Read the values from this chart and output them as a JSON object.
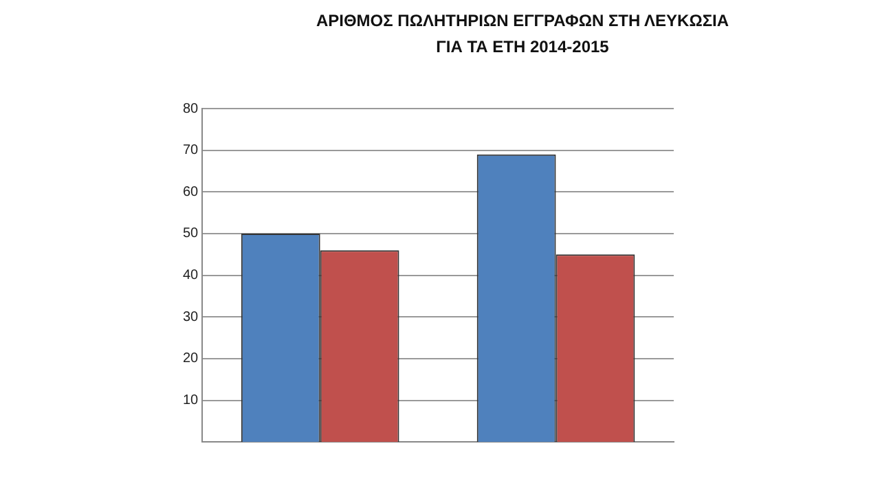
{
  "chart_data": {
    "type": "bar",
    "title": "ΑΡΙΘΜΟΣ ΠΩΛΗΤΗΡΙΩΝ ΕΓΓΡΑΦΩΝ ΣΤΗ ΛΕΥΚΩΣΙΑ ΓΙΑ ΤΑ ΕΤΗ 2014-2015",
    "categories": [
      null,
      null
    ],
    "series": [
      {
        "color": "#4f81bd",
        "values": [
          50,
          69
        ]
      },
      {
        "color": "#c0504d",
        "values": [
          46,
          45
        ]
      }
    ],
    "ylim": [
      0,
      80
    ],
    "yticks": [
      10,
      20,
      30,
      40,
      50,
      60,
      70,
      80
    ],
    "grid": "y",
    "legend": false
  }
}
